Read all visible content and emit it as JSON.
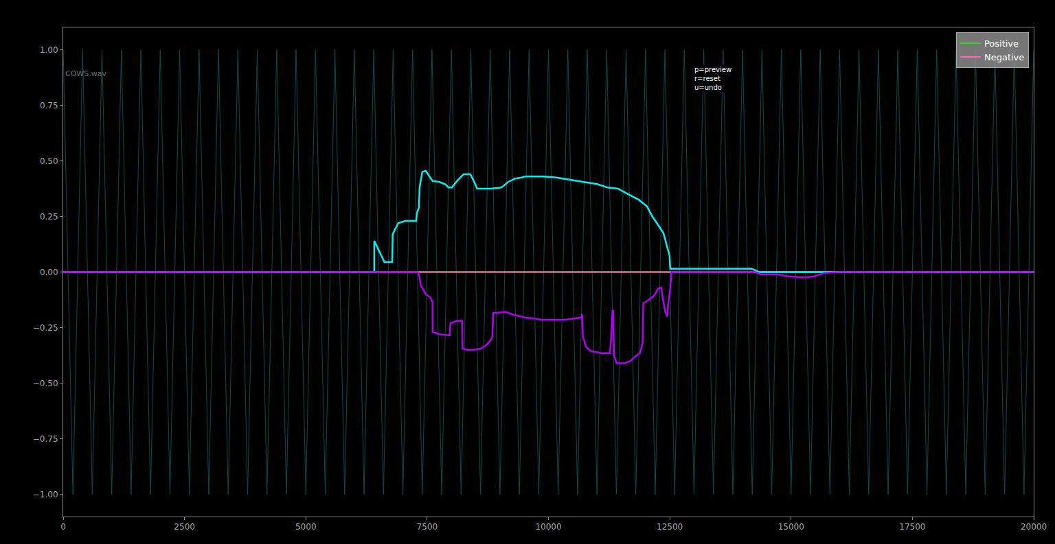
{
  "chart_data": {
    "type": "line",
    "xlim": [
      0,
      20000
    ],
    "ylim": [
      -1.1,
      1.1
    ],
    "xticks": [
      0,
      2500,
      5000,
      7500,
      10000,
      12500,
      15000,
      17500,
      20000
    ],
    "yticks": [
      {
        "value": 1,
        "label": "1.00"
      },
      {
        "value": 0.75,
        "label": "0.75"
      },
      {
        "value": 0.5,
        "label": "0.50"
      },
      {
        "value": 0.25,
        "label": "0.25"
      },
      {
        "value": 0,
        "label": "0.00"
      },
      {
        "value": -0.25,
        "label": "−0.25"
      },
      {
        "value": -0.5,
        "label": "−0.50"
      },
      {
        "value": -0.75,
        "label": "−0.75"
      },
      {
        "value": -1,
        "label": "−1.00"
      }
    ],
    "grid": false,
    "legend": "upper right",
    "annotations": [
      {
        "text": "COWS.wav"
      },
      {
        "lines": [
          "p=preview",
          "r=reset",
          "u=undo"
        ]
      }
    ],
    "waveform": {
      "color": "#0f4c4c",
      "x": [
        0,
        200,
        400,
        600,
        800,
        1000,
        1200,
        1400,
        1600,
        1800,
        2000,
        2200,
        2400,
        2600,
        2800,
        3000,
        3200,
        3400,
        3600,
        3800,
        4000,
        4200,
        4400,
        4600,
        4800,
        5000,
        5200,
        5400,
        5600,
        5800,
        6000,
        6200,
        6400,
        6600,
        6800,
        7000,
        7200,
        7400,
        7600,
        7800,
        8000,
        8200,
        8400,
        8600,
        8800,
        9000,
        9200,
        9400,
        9600,
        9800,
        10000,
        10200,
        10400,
        10600,
        10800,
        11000,
        11200,
        11400,
        11600,
        11800,
        12000,
        12200,
        12400,
        12600,
        12800,
        13000,
        13200,
        13400,
        13600,
        13800,
        14000,
        14200,
        14400,
        14600,
        14800,
        15000,
        15200,
        15400,
        15600,
        15800,
        16000,
        16200,
        16400,
        16600,
        16800,
        17000,
        17200,
        17400,
        17600,
        17800,
        18000,
        18200,
        18400,
        18600,
        18800,
        19000,
        19200,
        19400,
        19600,
        19800,
        20000
      ],
      "values": [
        1,
        -1,
        1,
        -1,
        1,
        -1,
        1,
        -1,
        1,
        -1,
        1,
        -1,
        1,
        -1,
        1,
        -1,
        1,
        -1,
        1,
        -1,
        1,
        -1,
        1,
        -1,
        1,
        -1,
        1,
        -1,
        1,
        -1,
        1,
        -1,
        1,
        -1,
        1,
        -1,
        1,
        -1,
        1,
        -1,
        1,
        -1,
        1,
        -1,
        1,
        -1,
        1,
        -1,
        1,
        -1,
        1,
        -1,
        1,
        -1,
        1,
        -1,
        1,
        -1,
        1,
        -1,
        1,
        -1,
        1,
        -1,
        1,
        -1,
        1,
        -1,
        1,
        -1,
        1,
        -1,
        1,
        -1,
        1,
        -1,
        1,
        -1,
        1,
        -1,
        1,
        -1,
        1,
        -1,
        1,
        -1,
        1,
        -1,
        1,
        -1,
        1,
        -1,
        1,
        -1,
        1,
        -1,
        1,
        -1,
        1,
        -1,
        1
      ]
    },
    "series": [
      {
        "name": "Positive",
        "color": "#33dd22",
        "x": [
          0,
          20000
        ],
        "values": [
          0,
          0
        ]
      },
      {
        "name": "Negative",
        "color": "#ff69b4",
        "x": [
          0,
          20000
        ],
        "values": [
          0,
          0
        ]
      },
      {
        "color": "#00f0f0",
        "x": [
          0,
          6410,
          6410,
          6620,
          6780,
          6790,
          6905,
          7050,
          7275,
          7290,
          7330,
          7345,
          7400,
          7470,
          7610,
          7755,
          7870,
          7940,
          8010,
          8120,
          8250,
          8390,
          8460,
          8530,
          8815,
          9030,
          9170,
          9310,
          9450,
          9525,
          9875,
          10160,
          10440,
          10725,
          11010,
          11220,
          11430,
          11645,
          11860,
          12030,
          12140,
          12280,
          12370,
          12450,
          12495,
          12510,
          14190,
          14335,
          20000
        ],
        "values": [
          0,
          0,
          0.14,
          0.045,
          0.045,
          0.17,
          0.22,
          0.23,
          0.23,
          0.265,
          0.29,
          0.38,
          0.45,
          0.455,
          0.41,
          0.405,
          0.395,
          0.38,
          0.38,
          0.41,
          0.44,
          0.44,
          0.41,
          0.375,
          0.375,
          0.38,
          0.405,
          0.42,
          0.425,
          0.43,
          0.43,
          0.425,
          0.415,
          0.405,
          0.395,
          0.38,
          0.375,
          0.35,
          0.325,
          0.295,
          0.25,
          0.205,
          0.175,
          0.11,
          0.075,
          0.015,
          0.015,
          0,
          0
        ]
      },
      {
        "color": "#b000f0",
        "x": [
          0,
          7300,
          7330,
          7370,
          7470,
          7570,
          7610,
          7615,
          7755,
          7965,
          7980,
          8110,
          8220,
          8230,
          8320,
          8460,
          8600,
          8715,
          8800,
          8845,
          8860,
          9125,
          9240,
          9340,
          9525,
          9735,
          9875,
          10345,
          10485,
          10655,
          10685,
          10695,
          10710,
          10770,
          10865,
          11080,
          11265,
          11290,
          11320,
          11335,
          11350,
          11405,
          11575,
          11690,
          11785,
          11885,
          11940,
          11955,
          12070,
          12185,
          12255,
          12325,
          12370,
          12410,
          12450,
          12465,
          12510,
          12535,
          14265,
          14375,
          14690,
          14970,
          15255,
          15465,
          15680,
          15960,
          20000
        ],
        "values": [
          0,
          0,
          -0.01,
          -0.06,
          -0.1,
          -0.115,
          -0.135,
          -0.27,
          -0.28,
          -0.285,
          -0.23,
          -0.22,
          -0.22,
          -0.345,
          -0.35,
          -0.35,
          -0.345,
          -0.33,
          -0.31,
          -0.29,
          -0.185,
          -0.18,
          -0.19,
          -0.195,
          -0.205,
          -0.21,
          -0.215,
          -0.215,
          -0.21,
          -0.205,
          -0.2,
          -0.19,
          -0.29,
          -0.335,
          -0.355,
          -0.365,
          -0.365,
          -0.305,
          -0.175,
          -0.175,
          -0.375,
          -0.41,
          -0.41,
          -0.4,
          -0.38,
          -0.365,
          -0.32,
          -0.14,
          -0.125,
          -0.105,
          -0.075,
          -0.07,
          -0.135,
          -0.18,
          -0.2,
          -0.15,
          -0.075,
          0,
          0,
          -0.01,
          -0.01,
          -0.02,
          -0.025,
          -0.02,
          -0.005,
          0,
          0
        ]
      }
    ]
  }
}
